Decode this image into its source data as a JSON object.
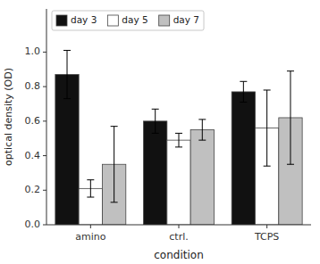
{
  "chart_data": {
    "type": "bar",
    "xlabel": "condition",
    "ylabel": "optical density (OD)",
    "categories": [
      "amino",
      "ctrl.",
      "TCPS"
    ],
    "series": [
      {
        "name": "day 3",
        "color": "#111111",
        "values": [
          0.87,
          0.6,
          0.77
        ],
        "errors": [
          0.14,
          0.07,
          0.06
        ]
      },
      {
        "name": "day 5",
        "color": "#ffffff",
        "values": [
          0.21,
          0.49,
          0.56
        ],
        "errors": [
          0.05,
          0.04,
          0.22
        ]
      },
      {
        "name": "day 7",
        "color": "#c0c0c0",
        "values": [
          0.35,
          0.55,
          0.62
        ],
        "errors": [
          0.22,
          0.06,
          0.27
        ]
      }
    ],
    "ylim": [
      0.0,
      1.25
    ],
    "yticks": [
      {
        "value": 0.0,
        "label": "0.0"
      },
      0.2,
      0.4,
      0.6,
      0.8,
      {
        "value": 1.0,
        "label": "1.0"
      }
    ],
    "grid": false,
    "legend": "upper left"
  }
}
